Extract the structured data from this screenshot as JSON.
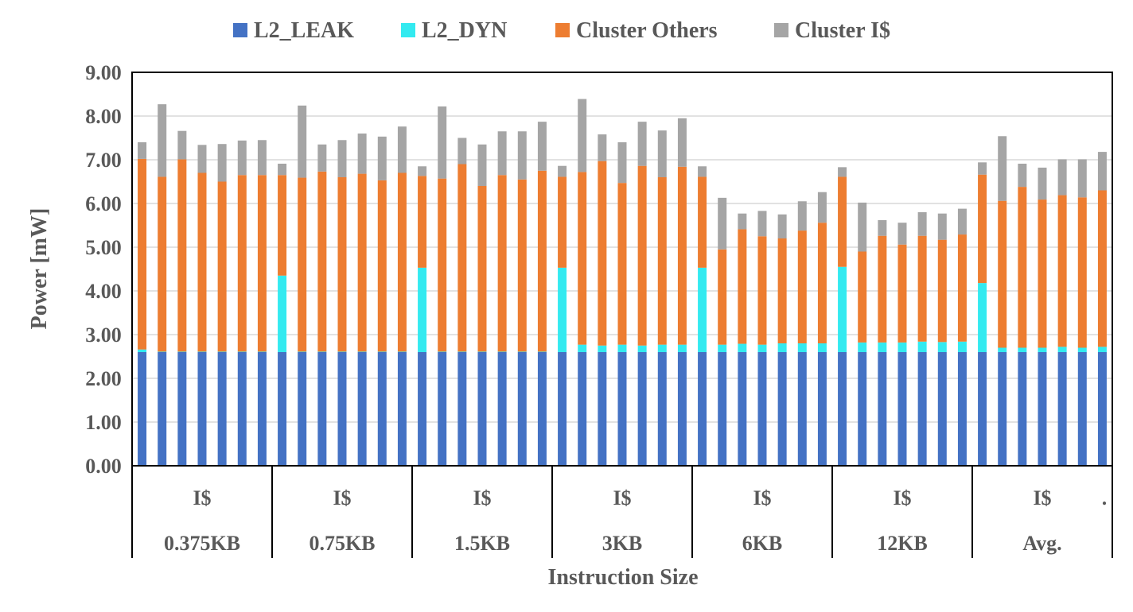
{
  "chart_data": {
    "type": "bar",
    "stacked": true,
    "ylabel": "Power [mW]",
    "xlabel": "Instruction Size",
    "ylim": [
      0,
      9
    ],
    "yticks": [
      "0.00",
      "1.00",
      "2.00",
      "3.00",
      "4.00",
      "5.00",
      "6.00",
      "7.00",
      "8.00",
      "9.00"
    ],
    "grid": true,
    "legend_position": "top",
    "groups": [
      {
        "line1": "I$",
        "line2": "0.375KB"
      },
      {
        "line1": "I$",
        "line2": "0.75KB"
      },
      {
        "line1": "I$",
        "line2": "1.5KB"
      },
      {
        "line1": "I$",
        "line2": "3KB"
      },
      {
        "line1": "I$",
        "line2": "6KB"
      },
      {
        "line1": "I$",
        "line2": "12KB"
      },
      {
        "line1": "I$",
        "line2": "Avg.",
        "extra": "."
      }
    ],
    "bars_per_group": 7,
    "series": [
      {
        "name": "L2_LEAK",
        "color": "#4472c4",
        "values": [
          2.6,
          2.6,
          2.6,
          2.6,
          2.6,
          2.6,
          2.6,
          2.6,
          2.6,
          2.6,
          2.6,
          2.6,
          2.6,
          2.6,
          2.6,
          2.6,
          2.6,
          2.6,
          2.6,
          2.6,
          2.6,
          2.6,
          2.6,
          2.6,
          2.6,
          2.6,
          2.6,
          2.6,
          2.6,
          2.6,
          2.6,
          2.6,
          2.6,
          2.6,
          2.6,
          2.6,
          2.6,
          2.6,
          2.6,
          2.6,
          2.6,
          2.6,
          2.6,
          2.6,
          2.6,
          2.6,
          2.6,
          2.6,
          2.6
        ]
      },
      {
        "name": "L2_DYN",
        "color": "#33eaf0",
        "values": [
          0.06,
          0.01,
          0.01,
          0.01,
          0.01,
          0.01,
          0.01,
          1.75,
          0.01,
          0.01,
          0.01,
          0.01,
          0.01,
          0.01,
          1.93,
          0.01,
          0.01,
          0.01,
          0.01,
          0.01,
          0.01,
          1.93,
          0.17,
          0.15,
          0.17,
          0.15,
          0.17,
          0.17,
          1.93,
          0.17,
          0.19,
          0.17,
          0.2,
          0.2,
          0.2,
          1.95,
          0.22,
          0.22,
          0.22,
          0.24,
          0.23,
          0.24,
          1.58,
          0.1,
          0.1,
          0.1,
          0.12,
          0.1,
          0.12
        ]
      },
      {
        "name": "Cluster Others",
        "color": "#ed7d31",
        "values": [
          4.36,
          4.0,
          4.4,
          4.09,
          3.89,
          4.04,
          4.04,
          2.3,
          3.98,
          4.12,
          3.99,
          4.07,
          3.92,
          4.09,
          2.1,
          3.96,
          4.29,
          3.79,
          4.04,
          3.94,
          4.14,
          2.08,
          3.95,
          4.22,
          3.7,
          4.11,
          3.83,
          4.07,
          2.08,
          2.18,
          2.62,
          2.48,
          2.4,
          2.58,
          2.76,
          2.06,
          2.08,
          2.44,
          2.24,
          2.42,
          2.34,
          2.45,
          2.48,
          3.36,
          3.68,
          3.39,
          3.47,
          3.44,
          3.58
        ]
      },
      {
        "name": "Cluster I$",
        "color": "#a5a5a5",
        "values": [
          0.38,
          1.66,
          0.65,
          0.64,
          0.86,
          0.79,
          0.8,
          0.26,
          1.65,
          0.62,
          0.85,
          0.92,
          1.0,
          1.06,
          0.22,
          1.65,
          0.6,
          0.95,
          1.0,
          1.1,
          1.12,
          0.25,
          1.67,
          0.61,
          0.93,
          1.01,
          1.07,
          1.11,
          0.24,
          1.18,
          0.36,
          0.58,
          0.55,
          0.67,
          0.7,
          0.22,
          1.12,
          0.36,
          0.5,
          0.54,
          0.6,
          0.59,
          0.28,
          1.48,
          0.53,
          0.73,
          0.82,
          0.87,
          0.88
        ]
      }
    ]
  }
}
